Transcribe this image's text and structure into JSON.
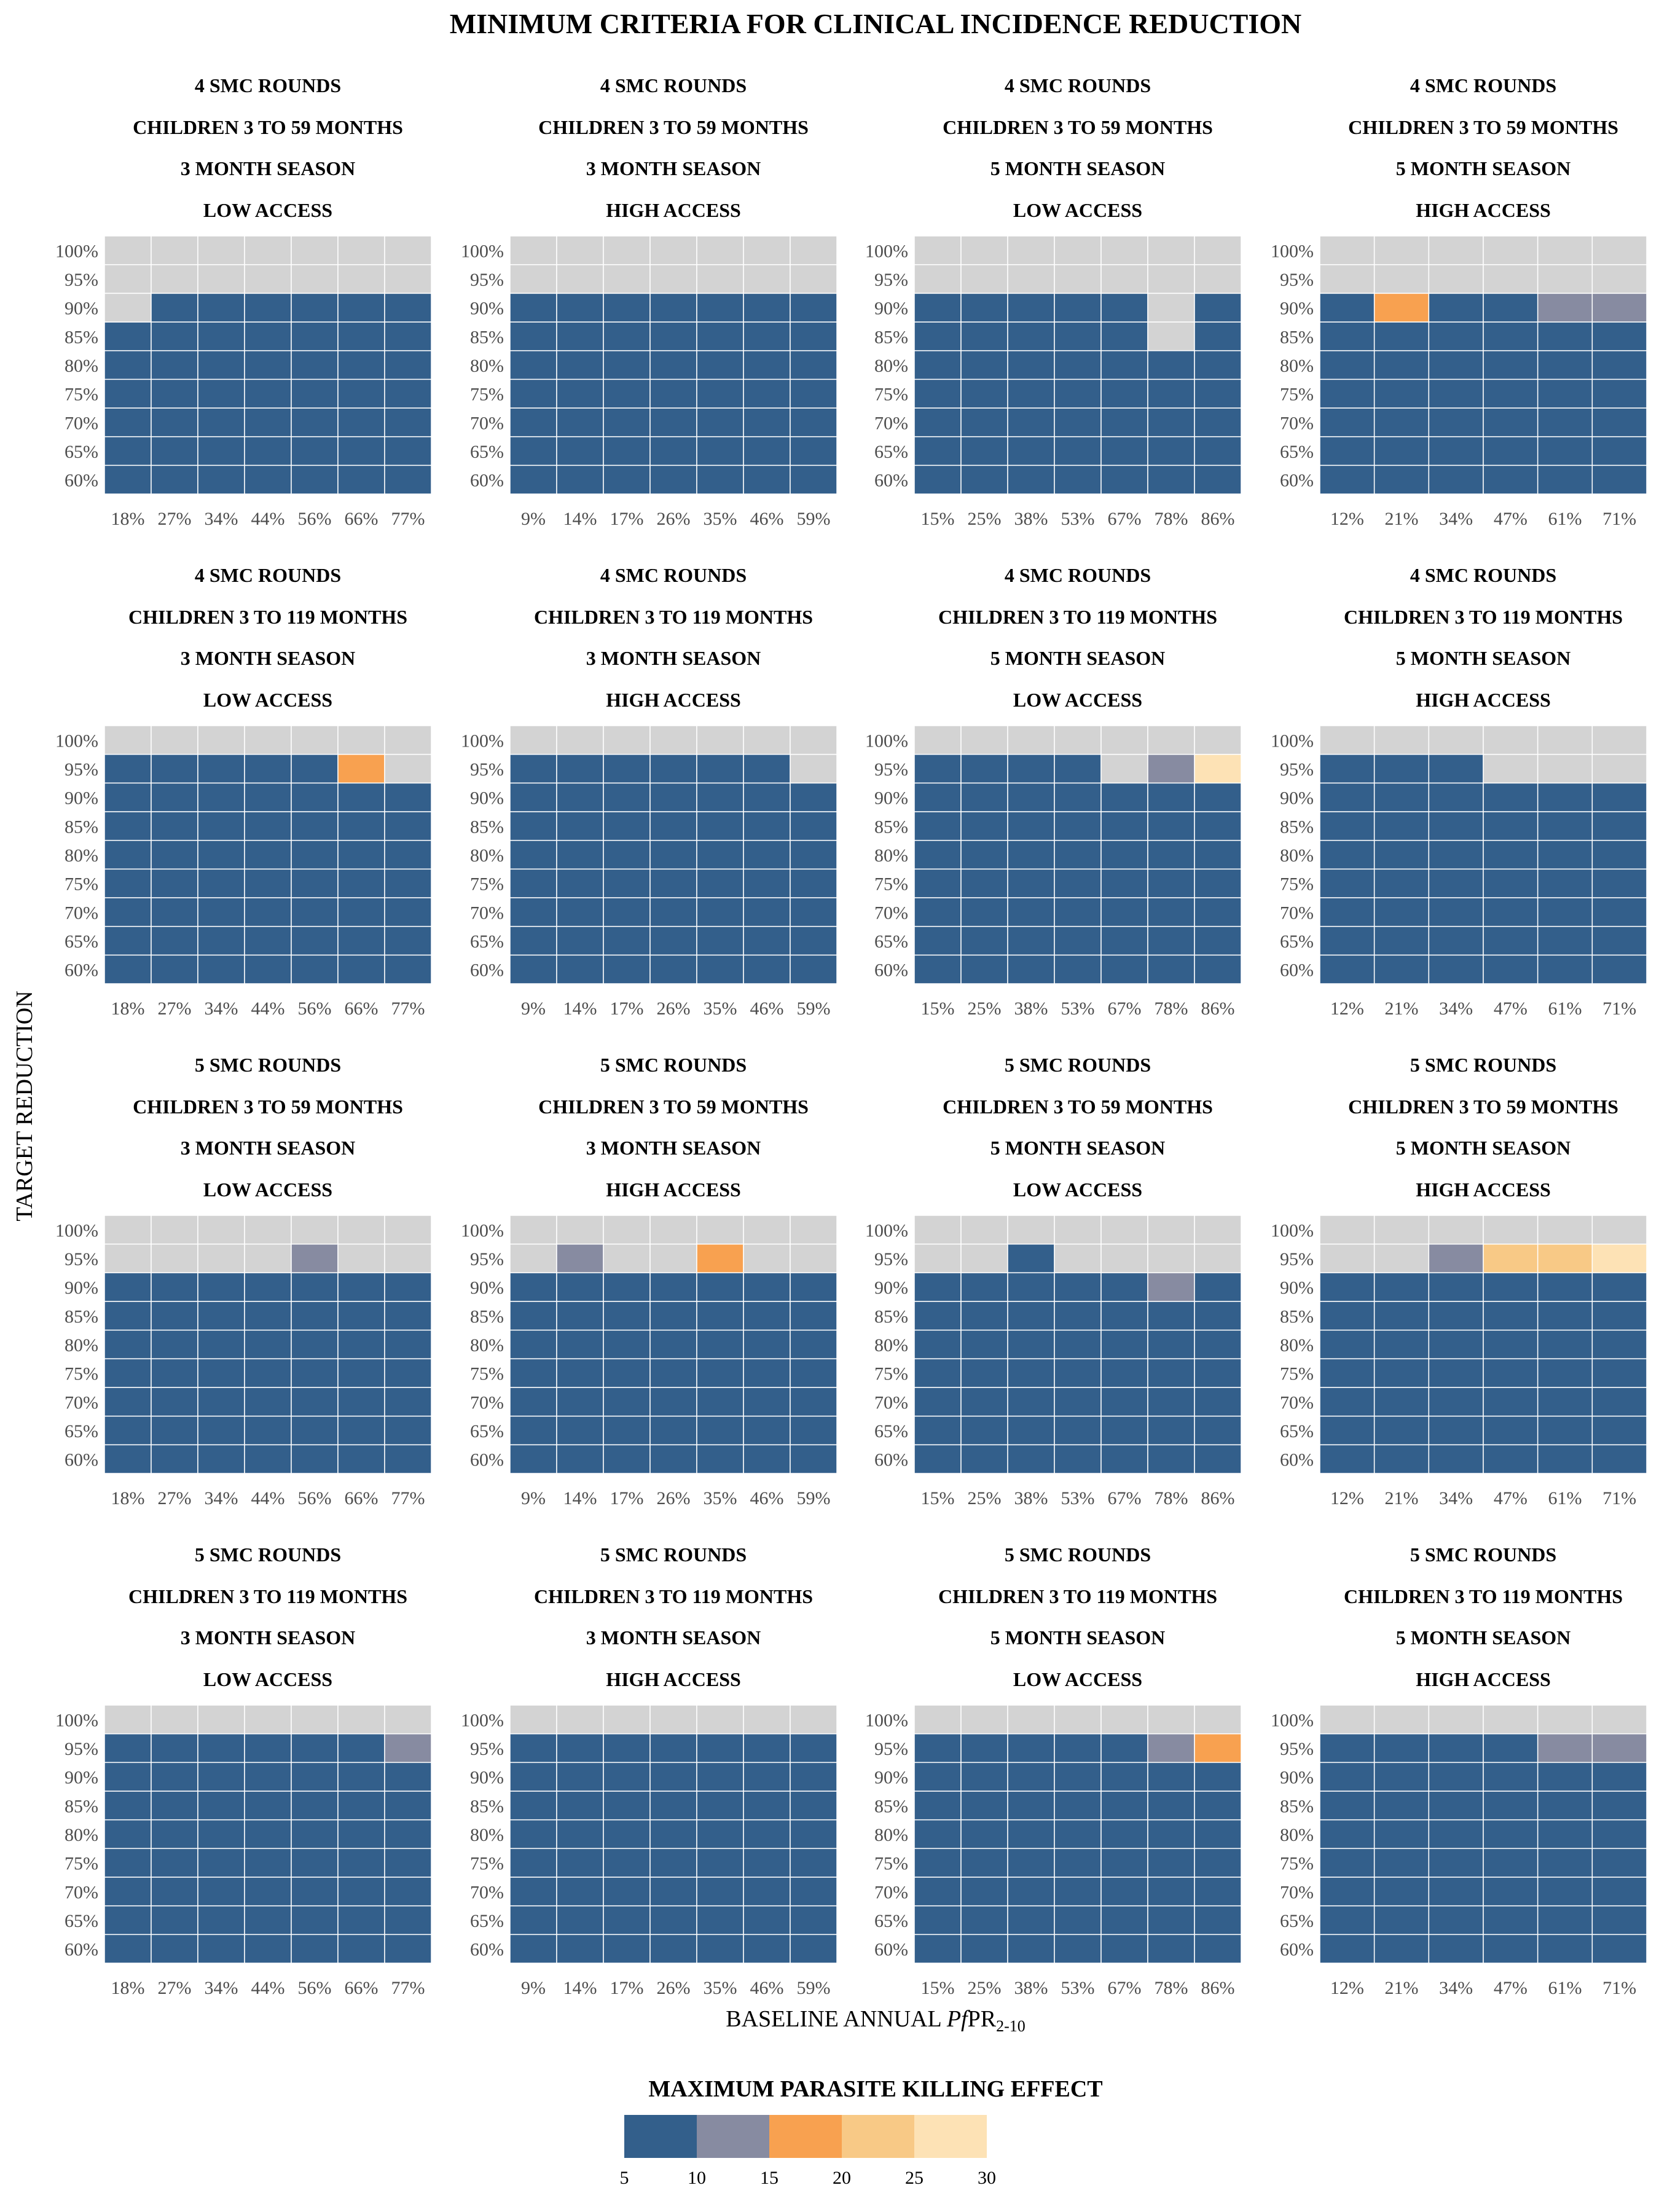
{
  "title": "MINIMUM CRITERIA FOR CLINICAL INCIDENCE REDUCTION",
  "ylabel": "TARGET REDUCTION",
  "xlabel": {
    "prefix": "BASELINE ANNUAL ",
    "italic": "Pf",
    "main": "PR",
    "sub": "2-10"
  },
  "legend": {
    "title": "MAXIMUM PARASITE KILLING EFFECT",
    "bins": [
      {
        "from": 5,
        "to": 10,
        "color": "#335f8b"
      },
      {
        "from": 10,
        "to": 15,
        "color": "#878ba1"
      },
      {
        "from": 15,
        "to": 20,
        "color": "#f8a150"
      },
      {
        "from": 20,
        "to": 25,
        "color": "#f8c986"
      },
      {
        "from": 25,
        "to": 30,
        "color": "#fde2b5"
      }
    ],
    "tick_labels": [
      "5",
      "10",
      "15",
      "20",
      "25",
      "30"
    ]
  },
  "colors": {
    "none": "#d3d3d3",
    "grid": "#ffffff"
  },
  "chart_data": {
    "type": "heatmap",
    "rows": 4,
    "cols": 4,
    "y_labels": [
      "60%",
      "65%",
      "70%",
      "75%",
      "80%",
      "85%",
      "90%",
      "95%",
      "100%"
    ],
    "x_label_sets": [
      [
        "18%",
        "27%",
        "34%",
        "44%",
        "56%",
        "66%",
        "77%"
      ],
      [
        "9%",
        "14%",
        "17%",
        "26%",
        "35%",
        "46%",
        "59%"
      ],
      [
        "15%",
        "25%",
        "38%",
        "53%",
        "67%",
        "78%",
        "86%"
      ],
      [
        "12%",
        "21%",
        "34%",
        "47%",
        "61%",
        "71%"
      ]
    ],
    "value_note": "cells[i] = one string per target row from 60% (first) to 100% (last); one character per baseline column; B=5-10, G=10-15, O=15-20, Y=20-25, L=25-30, x=not achievable",
    "panels": [
      {
        "rounds": "4 SMC ROUNDS",
        "age": "CHILDREN 3 TO 59 MONTHS",
        "season": "3 MONTH SEASON",
        "access": "LOW ACCESS",
        "cells": [
          "BBBBBBB",
          "BBBBBBB",
          "BBBBBBB",
          "BBBBBBB",
          "BBBBBBB",
          "BBBBBBB",
          "xBBBBBB",
          "xxxxxxx",
          "xxxxxxx"
        ]
      },
      {
        "rounds": "4 SMC ROUNDS",
        "age": "CHILDREN 3 TO 59 MONTHS",
        "season": "3 MONTH SEASON",
        "access": "HIGH ACCESS",
        "cells": [
          "BBBBBBB",
          "BBBBBBB",
          "BBBBBBB",
          "BBBBBBB",
          "BBBBBBB",
          "BBBBBBB",
          "BBBBBBB",
          "xxxxxxx",
          "xxxxxxx"
        ]
      },
      {
        "rounds": "4 SMC ROUNDS",
        "age": "CHILDREN 3 TO 59 MONTHS",
        "season": "5 MONTH SEASON",
        "access": "LOW ACCESS",
        "cells": [
          "BBBBBBB",
          "BBBBBBB",
          "BBBBBBB",
          "BBBBBBB",
          "BBBBBBB",
          "BBBBBxB",
          "BBBBBxB",
          "xxxxxxx",
          "xxxxxxx"
        ]
      },
      {
        "rounds": "4 SMC ROUNDS",
        "age": "CHILDREN 3 TO 59 MONTHS",
        "season": "5 MONTH SEASON",
        "access": "HIGH ACCESS",
        "cells": [
          "BBBBBB",
          "BBBBBB",
          "BBBBBB",
          "BBBBBB",
          "BBBBBB",
          "BBBBBB",
          "BOBBGG",
          "xxxxxx",
          "xxxxxx"
        ]
      },
      {
        "rounds": "4 SMC ROUNDS",
        "age": "CHILDREN 3 TO 119 MONTHS",
        "season": "3 MONTH SEASON",
        "access": "LOW ACCESS",
        "cells": [
          "BBBBBBB",
          "BBBBBBB",
          "BBBBBBB",
          "BBBBBBB",
          "BBBBBBB",
          "BBBBBBB",
          "BBBBBBB",
          "BBBBBOx",
          "xxxxxxx"
        ]
      },
      {
        "rounds": "4 SMC ROUNDS",
        "age": "CHILDREN 3 TO 119 MONTHS",
        "season": "3 MONTH SEASON",
        "access": "HIGH ACCESS",
        "cells": [
          "BBBBBBB",
          "BBBBBBB",
          "BBBBBBB",
          "BBBBBBB",
          "BBBBBBB",
          "BBBBBBB",
          "BBBBBBB",
          "BBBBBBx",
          "xxxxxxx"
        ]
      },
      {
        "rounds": "4 SMC ROUNDS",
        "age": "CHILDREN 3 TO 119 MONTHS",
        "season": "5 MONTH SEASON",
        "access": "LOW ACCESS",
        "cells": [
          "BBBBBBB",
          "BBBBBBB",
          "BBBBBBB",
          "BBBBBBB",
          "BBBBBBB",
          "BBBBBBB",
          "BBBBBBB",
          "BBBBxGL",
          "xxxxxxx"
        ]
      },
      {
        "rounds": "4 SMC ROUNDS",
        "age": "CHILDREN 3 TO 119 MONTHS",
        "season": "5 MONTH SEASON",
        "access": "HIGH ACCESS",
        "cells": [
          "BBBBBB",
          "BBBBBB",
          "BBBBBB",
          "BBBBBB",
          "BBBBBB",
          "BBBBBB",
          "BBBBBB",
          "BBBxxx",
          "xxxxxx"
        ]
      },
      {
        "rounds": "5 SMC ROUNDS",
        "age": "CHILDREN 3 TO 59 MONTHS",
        "season": "3 MONTH SEASON",
        "access": "LOW ACCESS",
        "cells": [
          "BBBBBBB",
          "BBBBBBB",
          "BBBBBBB",
          "BBBBBBB",
          "BBBBBBB",
          "BBBBBBB",
          "BBBBBBB",
          "xxxxGxx",
          "xxxxxxx"
        ]
      },
      {
        "rounds": "5 SMC ROUNDS",
        "age": "CHILDREN 3 TO 59 MONTHS",
        "season": "3 MONTH SEASON",
        "access": "HIGH ACCESS",
        "cells": [
          "BBBBBBB",
          "BBBBBBB",
          "BBBBBBB",
          "BBBBBBB",
          "BBBBBBB",
          "BBBBBBB",
          "BBBBBBB",
          "xGxxOxx",
          "xxxxxxx"
        ]
      },
      {
        "rounds": "5 SMC ROUNDS",
        "age": "CHILDREN 3 TO 59 MONTHS",
        "season": "5 MONTH SEASON",
        "access": "LOW ACCESS",
        "cells": [
          "BBBBBBB",
          "BBBBBBB",
          "BBBBBBB",
          "BBBBBBB",
          "BBBBBBB",
          "BBBBBBB",
          "BBBBBGB",
          "xxBxxxx",
          "xxxxxxx"
        ]
      },
      {
        "rounds": "5 SMC ROUNDS",
        "age": "CHILDREN 3 TO 59 MONTHS",
        "season": "5 MONTH SEASON",
        "access": "HIGH ACCESS",
        "cells": [
          "BBBBBB",
          "BBBBBB",
          "BBBBBB",
          "BBBBBB",
          "BBBBBB",
          "BBBBBB",
          "BBBBBB",
          "xxGYYL",
          "xxxxxx"
        ]
      },
      {
        "rounds": "5 SMC ROUNDS",
        "age": "CHILDREN 3 TO 119 MONTHS",
        "season": "3 MONTH SEASON",
        "access": "LOW ACCESS",
        "cells": [
          "BBBBBBB",
          "BBBBBBB",
          "BBBBBBB",
          "BBBBBBB",
          "BBBBBBB",
          "BBBBBBB",
          "BBBBBBB",
          "BBBBBBG",
          "xxxxxxx"
        ]
      },
      {
        "rounds": "5 SMC ROUNDS",
        "age": "CHILDREN 3 TO 119 MONTHS",
        "season": "3 MONTH SEASON",
        "access": "HIGH ACCESS",
        "cells": [
          "BBBBBBB",
          "BBBBBBB",
          "BBBBBBB",
          "BBBBBBB",
          "BBBBBBB",
          "BBBBBBB",
          "BBBBBBB",
          "BBBBBBB",
          "xxxxxxx"
        ]
      },
      {
        "rounds": "5 SMC ROUNDS",
        "age": "CHILDREN 3 TO 119 MONTHS",
        "season": "5 MONTH SEASON",
        "access": "LOW ACCESS",
        "cells": [
          "BBBBBBB",
          "BBBBBBB",
          "BBBBBBB",
          "BBBBBBB",
          "BBBBBBB",
          "BBBBBBB",
          "BBBBBBB",
          "BBBBBGO",
          "xxxxxxx"
        ]
      },
      {
        "rounds": "5 SMC ROUNDS",
        "age": "CHILDREN 3 TO 119 MONTHS",
        "season": "5 MONTH SEASON",
        "access": "HIGH ACCESS",
        "cells": [
          "BBBBBB",
          "BBBBBB",
          "BBBBBB",
          "BBBBBB",
          "BBBBBB",
          "BBBBBB",
          "BBBBBB",
          "BBBBGG",
          "xxxxxx"
        ]
      }
    ]
  }
}
